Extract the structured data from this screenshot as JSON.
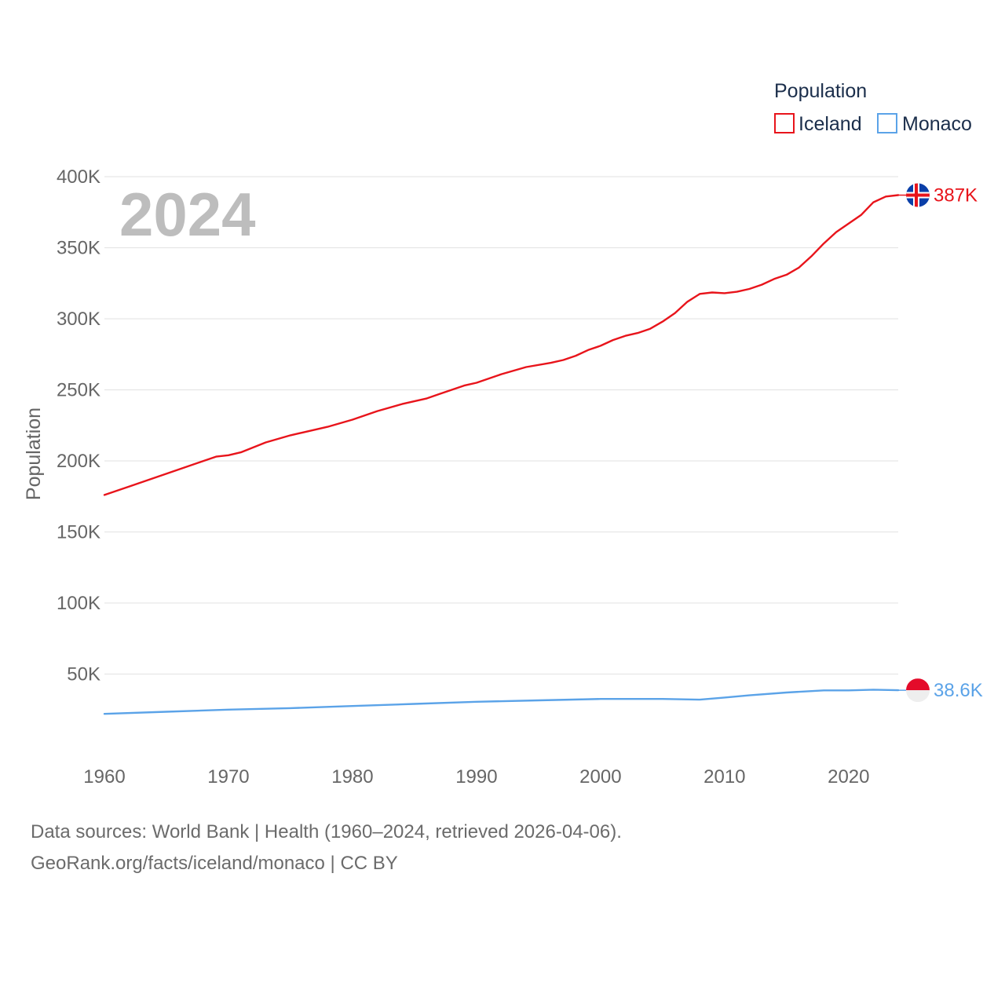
{
  "chart_data": {
    "type": "line",
    "title": "",
    "year_label": "2024",
    "ylabel": "Population",
    "xlabel": "",
    "xlim": [
      1960,
      2024
    ],
    "ylim": [
      0,
      400000
    ],
    "x_ticks": [
      1960,
      1970,
      1980,
      1990,
      2000,
      2010,
      2020
    ],
    "y_ticks": [
      {
        "value": 50000,
        "label": "50K"
      },
      {
        "value": 100000,
        "label": "100K"
      },
      {
        "value": 150000,
        "label": "150K"
      },
      {
        "value": 200000,
        "label": "200K"
      },
      {
        "value": 250000,
        "label": "250K"
      },
      {
        "value": 300000,
        "label": "300K"
      },
      {
        "value": 350000,
        "label": "350K"
      },
      {
        "value": 400000,
        "label": "400K"
      }
    ],
    "grid": true,
    "legend": {
      "title": "Population",
      "position": "top-right"
    },
    "series": [
      {
        "name": "Iceland",
        "color": "#e8141b",
        "end_label": "387K",
        "flag": "iceland-flag",
        "x": [
          1960,
          1962,
          1964,
          1966,
          1968,
          1969,
          1970,
          1971,
          1973,
          1975,
          1976,
          1978,
          1980,
          1982,
          1984,
          1986,
          1987,
          1989,
          1990,
          1992,
          1994,
          1996,
          1997,
          1998,
          1999,
          2000,
          2001,
          2002,
          2003,
          2004,
          2005,
          2006,
          2007,
          2008,
          2009,
          2010,
          2011,
          2012,
          2013,
          2014,
          2015,
          2016,
          2017,
          2018,
          2019,
          2020,
          2021,
          2022,
          2023,
          2024
        ],
        "values": [
          176000,
          182000,
          188000,
          194000,
          200000,
          203000,
          204000,
          206000,
          213000,
          218000,
          220000,
          224000,
          229000,
          235000,
          240000,
          244000,
          247000,
          253000,
          255000,
          261000,
          266000,
          269000,
          271000,
          274000,
          278000,
          281000,
          285000,
          288000,
          290000,
          293000,
          298000,
          304000,
          312000,
          317500,
          318500,
          318000,
          319000,
          321000,
          324000,
          328000,
          331000,
          336000,
          344000,
          353000,
          361000,
          367000,
          373000,
          382000,
          386000,
          387000
        ]
      },
      {
        "name": "Monaco",
        "color": "#5ba3e8",
        "end_label": "38.6K",
        "flag": "monaco-flag",
        "x": [
          1960,
          1965,
          1970,
          1975,
          1980,
          1985,
          1990,
          1995,
          2000,
          2005,
          2008,
          2010,
          2012,
          2015,
          2018,
          2020,
          2022,
          2024
        ],
        "values": [
          22000,
          23500,
          25000,
          26000,
          27500,
          29000,
          30500,
          31500,
          32500,
          32500,
          32000,
          33500,
          35000,
          37000,
          38500,
          38500,
          39000,
          38600
        ]
      }
    ]
  },
  "footer": {
    "source_line": "Data sources: World Bank | Health (1960–2024, retrieved 2026-04-06).",
    "credit_line": "GeoRank.org/facts/iceland/monaco | CC BY"
  }
}
